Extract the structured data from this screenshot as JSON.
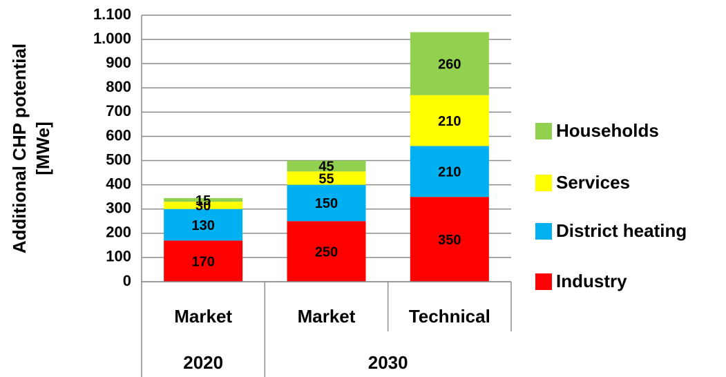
{
  "chart_data": {
    "type": "stacked_bar",
    "ylabel": [
      "Additional CHP potential",
      "[MWe]"
    ],
    "categories": [
      "Market",
      "Market",
      "Technical"
    ],
    "groups": [
      {
        "name": "2020",
        "span": 1
      },
      {
        "name": "2030",
        "span": 2
      }
    ],
    "series": [
      {
        "name": "Industry",
        "color": "#ff0000",
        "values": [
          170,
          250,
          350
        ]
      },
      {
        "name": "District heating",
        "color": "#00b0f0",
        "values": [
          130,
          150,
          210
        ]
      },
      {
        "name": "Services",
        "color": "#ffff00",
        "values": [
          30,
          55,
          210
        ]
      },
      {
        "name": "Households",
        "color": "#92d050",
        "values": [
          15,
          45,
          260
        ]
      }
    ],
    "ylim": [
      0,
      1100
    ],
    "yticks": [
      0,
      100,
      200,
      300,
      400,
      500,
      600,
      700,
      800,
      900,
      {
        "value": 1000,
        "label": "1.000"
      },
      {
        "value": 1100,
        "label": "1.100"
      }
    ],
    "grid": true,
    "legend": "right"
  }
}
